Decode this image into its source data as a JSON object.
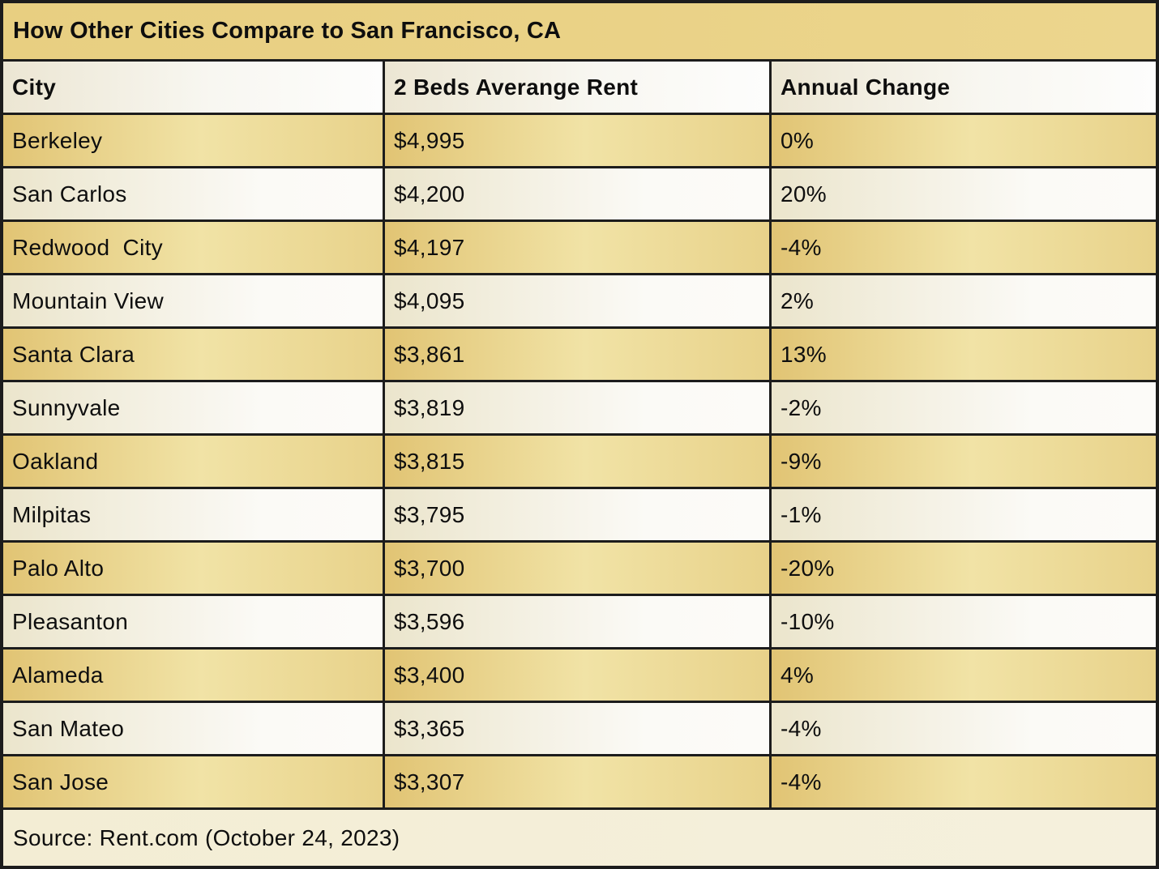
{
  "title": "How Other Cities Compare to San Francisco, CA",
  "source_note": "Source: Rent.com (October 24, 2023)",
  "colors": {
    "row_gold": "#e7cf85",
    "row_cream": "#f3eedd",
    "title_gold": "#ead287",
    "footer_cream": "#f4eed7",
    "border": "#1c1c1c",
    "text": "#0e0e0e"
  },
  "chart_data": {
    "type": "table",
    "title": "How Other Cities Compare to San Francisco, CA",
    "columns": {
      "city": "City",
      "rent": "2 Beds Averange Rent",
      "change": "Annual Change"
    },
    "rows": [
      {
        "city": "Berkeley",
        "rent": "$4,995",
        "change": "0%",
        "rent_value": 4995,
        "change_pct": 0
      },
      {
        "city": "San Carlos",
        "rent": "$4,200",
        "change": "20%",
        "rent_value": 4200,
        "change_pct": 20
      },
      {
        "city": "Redwood  City",
        "rent": "$4,197",
        "change": "-4%",
        "rent_value": 4197,
        "change_pct": -4
      },
      {
        "city": "Mountain View",
        "rent": "$4,095",
        "change": "2%",
        "rent_value": 4095,
        "change_pct": 2
      },
      {
        "city": "Santa Clara",
        "rent": "$3,861",
        "change": "13%",
        "rent_value": 3861,
        "change_pct": 13
      },
      {
        "city": "Sunnyvale",
        "rent": "$3,819",
        "change": "-2%",
        "rent_value": 3819,
        "change_pct": -2
      },
      {
        "city": "Oakland",
        "rent": "$3,815",
        "change": "-9%",
        "rent_value": 3815,
        "change_pct": -9
      },
      {
        "city": "Milpitas",
        "rent": "$3,795",
        "change": "-1%",
        "rent_value": 3795,
        "change_pct": -1
      },
      {
        "city": "Palo Alto",
        "rent": "$3,700",
        "change": "-20%",
        "rent_value": 3700,
        "change_pct": -20
      },
      {
        "city": "Pleasanton",
        "rent": "$3,596",
        "change": "-10%",
        "rent_value": 3596,
        "change_pct": -10
      },
      {
        "city": "Alameda",
        "rent": "$3,400",
        "change": "4%",
        "rent_value": 3400,
        "change_pct": 4
      },
      {
        "city": "San Mateo",
        "rent": "$3,365",
        "change": "-4%",
        "rent_value": 3365,
        "change_pct": -4
      },
      {
        "city": "San Jose",
        "rent": "$3,307",
        "change": "-4%",
        "rent_value": 3307,
        "change_pct": -4
      }
    ]
  }
}
